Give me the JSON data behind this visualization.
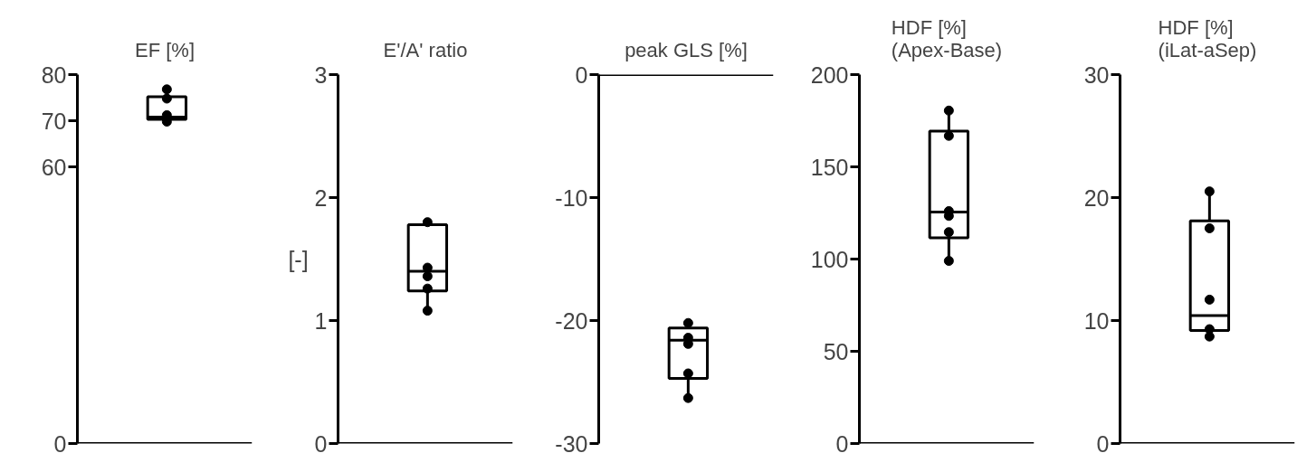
{
  "chart_data": [
    {
      "type": "box",
      "title": "EF [%]",
      "categories": [
        null
      ],
      "ylim": [
        0,
        80
      ],
      "yticks": [
        0,
        60,
        70,
        80
      ],
      "grid": false,
      "tick_labels": "y",
      "boxes": [
        {
          "low": 69.8,
          "q1": 70.3,
          "median": 70.8,
          "q3": 75.2,
          "high": 76.8
        }
      ],
      "series": [
        {
          "type": "scatter",
          "color": "#000000",
          "marker": "circle",
          "x": [
            null,
            null,
            null,
            null
          ],
          "values": [
            76.8,
            74.8,
            71.2,
            69.8
          ]
        }
      ]
    },
    {
      "type": "box",
      "title": "E'/A' ratio",
      "ylabel": "[-]",
      "categories": [
        null
      ],
      "ylim": [
        0,
        3
      ],
      "yticks": [
        0,
        1,
        2,
        3
      ],
      "grid": false,
      "tick_labels": "y",
      "boxes": [
        {
          "low": 1.08,
          "q1": 1.24,
          "median": 1.4,
          "q3": 1.78,
          "high": 1.8
        }
      ],
      "series": [
        {
          "type": "scatter",
          "color": "#000000",
          "marker": "circle",
          "x": [
            null,
            null,
            null,
            null,
            null
          ],
          "values": [
            1.8,
            1.43,
            1.36,
            1.26,
            1.08
          ]
        }
      ]
    },
    {
      "type": "box",
      "title": "peak GLS [%]",
      "categories": [
        null
      ],
      "ylim": [
        -30,
        0
      ],
      "yticks": [
        -30,
        -20,
        -10,
        0
      ],
      "grid": false,
      "tick_labels": "y",
      "boxes": [
        {
          "low": -26.3,
          "q1": -24.7,
          "median": -21.6,
          "q3": -20.6,
          "high": -20.2
        }
      ],
      "series": [
        {
          "type": "scatter",
          "color": "#000000",
          "marker": "circle",
          "x": [
            null,
            null,
            null,
            null,
            null
          ],
          "values": [
            -20.2,
            -21.4,
            -21.9,
            -24.3,
            -26.3
          ]
        }
      ]
    },
    {
      "type": "box",
      "title": "HDF [%]\n(Apex-Base)",
      "categories": [
        null
      ],
      "ylim": [
        0,
        200
      ],
      "yticks": [
        0,
        50,
        100,
        150,
        200
      ],
      "grid": false,
      "tick_labels": "y",
      "boxes": [
        {
          "low": 99,
          "q1": 111.5,
          "median": 125.5,
          "q3": 169.4,
          "high": 180.5
        }
      ],
      "series": [
        {
          "type": "scatter",
          "color": "#000000",
          "marker": "circle",
          "x": [
            null,
            null,
            null,
            null,
            null,
            null
          ],
          "values": [
            180.5,
            166.8,
            126,
            123.4,
            114.6,
            99
          ]
        }
      ]
    },
    {
      "type": "box",
      "title": "HDF [%]\n(iLat-aSep)",
      "categories": [
        null
      ],
      "ylim": [
        0,
        30
      ],
      "yticks": [
        0,
        10,
        20,
        30
      ],
      "grid": false,
      "tick_labels": "y",
      "boxes": [
        {
          "low": 8.7,
          "q1": 9.2,
          "median": 10.4,
          "q3": 18.1,
          "high": 20.5
        }
      ],
      "series": [
        {
          "type": "scatter",
          "color": "#000000",
          "marker": "circle",
          "x": [
            null,
            null,
            null,
            null,
            null
          ],
          "values": [
            20.5,
            17.5,
            11.7,
            9.3,
            8.7
          ]
        }
      ]
    }
  ]
}
